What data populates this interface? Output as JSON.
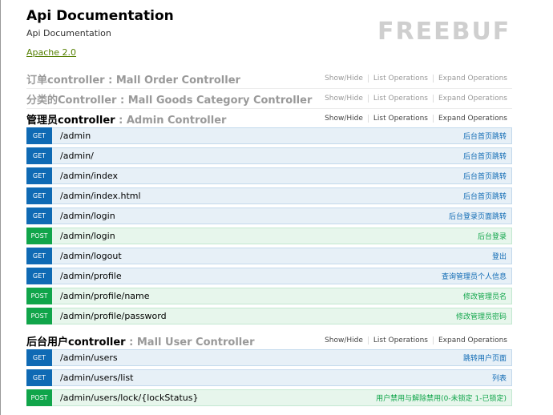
{
  "info": {
    "title": "Api Documentation",
    "description": "Api Documentation",
    "license": "Apache 2.0"
  },
  "links": {
    "show_hide": "Show/Hide",
    "list": "List Operations",
    "expand": "Expand Operations"
  },
  "resources": [
    {
      "cn": "订单controller",
      "sep": " : ",
      "en": "Mall Order Controller"
    },
    {
      "cn": "分类的Controller",
      "sep": " : ",
      "en": "Mall Goods Category Controller"
    },
    {
      "cn": "管理员controller",
      "sep": " : ",
      "en": "Admin Controller"
    },
    {
      "cn": "后台用户controller",
      "sep": " : ",
      "en": "Mall User Controller"
    }
  ],
  "admin_ops": [
    {
      "method": "GET",
      "path": "/admin",
      "summary": "后台首页跳转"
    },
    {
      "method": "GET",
      "path": "/admin/",
      "summary": "后台首页跳转"
    },
    {
      "method": "GET",
      "path": "/admin/index",
      "summary": "后台首页跳转"
    },
    {
      "method": "GET",
      "path": "/admin/index.html",
      "summary": "后台首页跳转"
    },
    {
      "method": "GET",
      "path": "/admin/login",
      "summary": "后台登录页面跳转"
    },
    {
      "method": "POST",
      "path": "/admin/login",
      "summary": "后台登录"
    },
    {
      "method": "GET",
      "path": "/admin/logout",
      "summary": "登出"
    },
    {
      "method": "GET",
      "path": "/admin/profile",
      "summary": "查询管理员个人信息"
    },
    {
      "method": "POST",
      "path": "/admin/profile/name",
      "summary": "修改管理员名"
    },
    {
      "method": "POST",
      "path": "/admin/profile/password",
      "summary": "修改管理员密码"
    }
  ],
  "user_ops": [
    {
      "method": "GET",
      "path": "/admin/users",
      "summary": "跳转用户页面"
    },
    {
      "method": "GET",
      "path": "/admin/users/list",
      "summary": "列表"
    },
    {
      "method": "POST",
      "path": "/admin/users/lock/{lockStatus}",
      "summary": "用户禁用与解除禁用(0-未锁定 1-已锁定)"
    }
  ],
  "watermark": "FREEBUF"
}
